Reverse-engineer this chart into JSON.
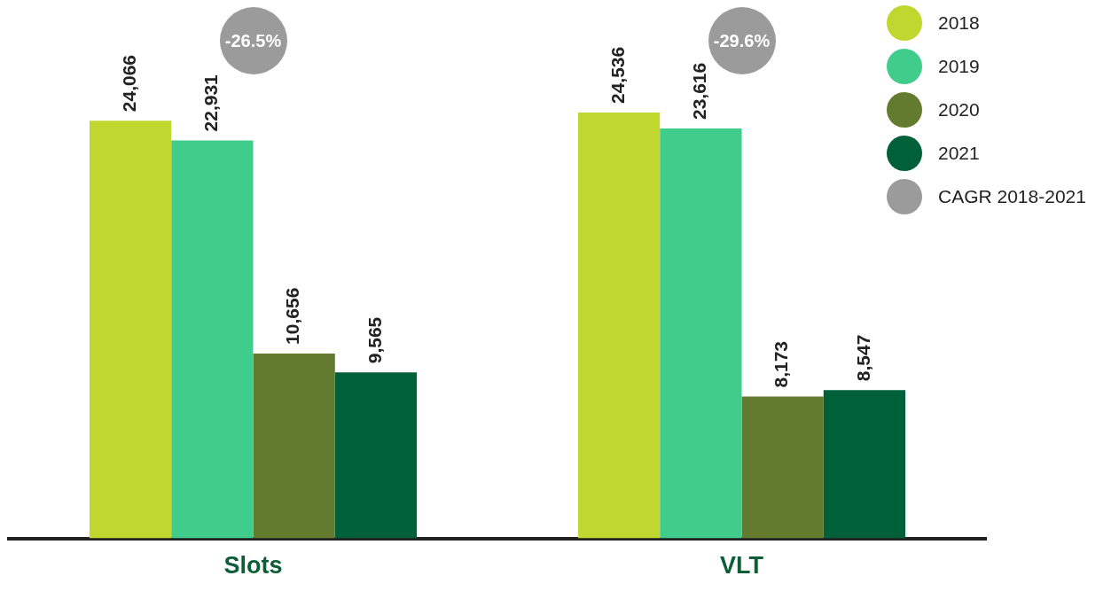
{
  "chart_data": {
    "type": "bar",
    "categories": [
      "Slots",
      "VLT"
    ],
    "series": [
      {
        "name": "2018",
        "color": "#c0d730",
        "values": [
          24066,
          24536
        ],
        "value_labels": [
          "24,066",
          "24,536"
        ]
      },
      {
        "name": "2019",
        "color": "#40cd8c",
        "values": [
          22931,
          23616
        ],
        "value_labels": [
          "22,931",
          "23,616"
        ]
      },
      {
        "name": "2020",
        "color": "#627b2f",
        "values": [
          10656,
          8173
        ],
        "value_labels": [
          "10,656",
          "8,173"
        ]
      },
      {
        "name": "2021",
        "color": "#00603a",
        "values": [
          9565,
          8547
        ],
        "value_labels": [
          "9,565",
          "8,547"
        ]
      }
    ],
    "tick_labels": "x",
    "legend": "top right",
    "annotations": [
      "-26.5%",
      "-29.6%",
      "CAGR 2018-2021"
    ]
  }
}
